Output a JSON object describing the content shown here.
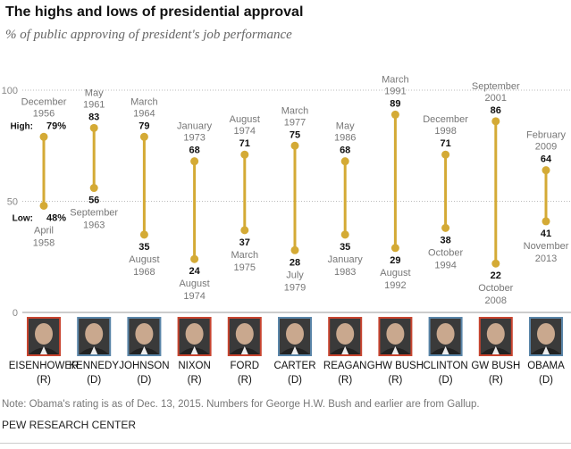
{
  "title": "The highs and lows of presidential approval",
  "subtitle": "% of public approving of president's job performance",
  "note": "Note: Obama's rating is as of Dec. 13, 2015. Numbers for George H.W. Bush and earlier are from Gallup.",
  "source": "PEW RESEARCH CENTER",
  "colors": {
    "line": "#d4aa35",
    "republican": "#c8442f",
    "democrat": "#5a85a8",
    "grid": "#bbbbbb"
  },
  "chart_data": {
    "type": "range-dot",
    "ylim": [
      0,
      100
    ],
    "yticks": [
      "0",
      "50",
      "100"
    ],
    "high_prefix": "High:",
    "low_prefix": "Low:",
    "presidents": [
      {
        "name": "EISENHOWER",
        "party": "(R)",
        "high": 79,
        "high_month": "December",
        "high_year": "1956",
        "low": 48,
        "low_month": "April",
        "low_year": "1958"
      },
      {
        "name": "KENNEDY",
        "party": "(D)",
        "high": 83,
        "high_month": "May",
        "high_year": "1961",
        "low": 56,
        "low_month": "September",
        "low_year": "1963"
      },
      {
        "name": "JOHNSON",
        "party": "(D)",
        "high": 79,
        "high_month": "March",
        "high_year": "1964",
        "low": 35,
        "low_month": "August",
        "low_year": "1968"
      },
      {
        "name": "NIXON",
        "party": "(R)",
        "high": 68,
        "high_month": "January",
        "high_year": "1973",
        "low": 24,
        "low_month": "August",
        "low_year": "1974"
      },
      {
        "name": "FORD",
        "party": "(R)",
        "high": 71,
        "high_month": "August",
        "high_year": "1974",
        "low": 37,
        "low_month": "March",
        "low_year": "1975"
      },
      {
        "name": "CARTER",
        "party": "(D)",
        "high": 75,
        "high_month": "March",
        "high_year": "1977",
        "low": 28,
        "low_month": "July",
        "low_year": "1979"
      },
      {
        "name": "REAGAN",
        "party": "(R)",
        "high": 68,
        "high_month": "May",
        "high_year": "1986",
        "low": 35,
        "low_month": "January",
        "low_year": "1983"
      },
      {
        "name": "GHW BUSH",
        "party": "(R)",
        "high": 89,
        "high_month": "March",
        "high_year": "1991",
        "low": 29,
        "low_month": "August",
        "low_year": "1992"
      },
      {
        "name": "CLINTON",
        "party": "(D)",
        "high": 71,
        "high_month": "December",
        "high_year": "1998",
        "low": 38,
        "low_month": "October",
        "low_year": "1994"
      },
      {
        "name": "GW BUSH",
        "party": "(R)",
        "high": 86,
        "high_month": "September",
        "high_year": "2001",
        "low": 22,
        "low_month": "October",
        "low_year": "2008"
      },
      {
        "name": "OBAMA",
        "party": "(D)",
        "high": 64,
        "high_month": "February",
        "high_year": "2009",
        "low": 41,
        "low_month": "November",
        "low_year": "2013"
      }
    ]
  }
}
